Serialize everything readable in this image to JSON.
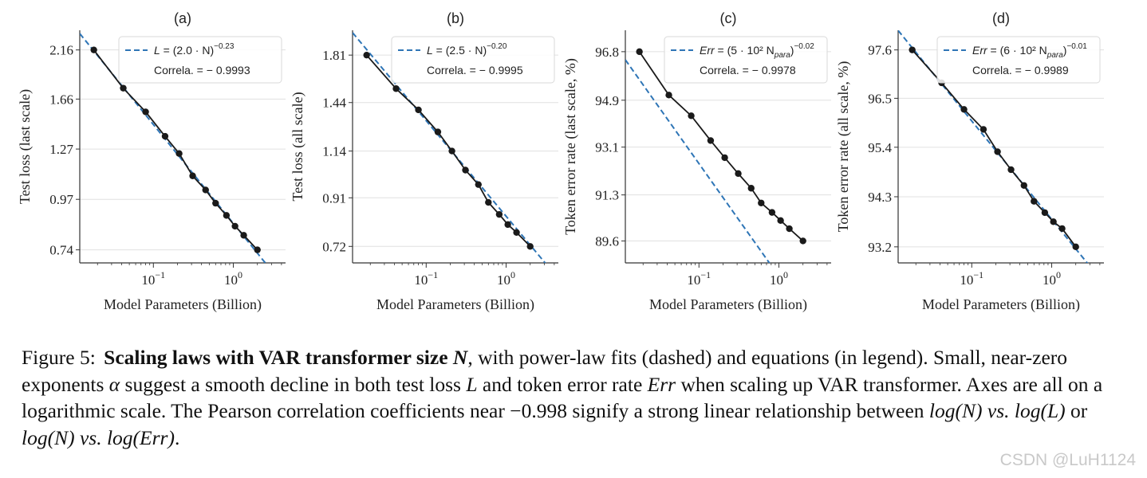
{
  "chart_data": [
    {
      "type": "line",
      "panel_label": "(a)",
      "xlabel": "Model Parameters (Billion)",
      "ylabel": "Test loss (last scale)",
      "x_scale": "log",
      "y_scale": "log",
      "xlim": [
        0.012,
        4.5
      ],
      "ylim": [
        0.69,
        2.4
      ],
      "x_ticks": [
        {
          "value": 0.1,
          "base": "10",
          "exp": "−1"
        },
        {
          "value": 1,
          "base": "10",
          "exp": "0"
        }
      ],
      "y_ticks": [
        0.74,
        0.97,
        1.27,
        1.66,
        2.16
      ],
      "y_tick_labels": [
        "0.74",
        "0.97",
        "1.27",
        "1.66",
        "2.16"
      ],
      "grid": "horizontal",
      "legend_position": "top-right",
      "legend": {
        "lhs": "L",
        "paren": "(2.0 · N)",
        "exp": "−0.23",
        "correlation_label": "Correla. = − 0.9993"
      },
      "fit": {
        "coef": 2.0,
        "exponent": -0.23
      },
      "series": [
        {
          "x": [
            0.018,
            0.042,
            0.08,
            0.14,
            0.21,
            0.31,
            0.45,
            0.6,
            0.82,
            1.05,
            1.35,
            2.0
          ],
          "y": [
            2.16,
            1.76,
            1.55,
            1.36,
            1.24,
            1.1,
            1.02,
            0.95,
            0.89,
            0.84,
            0.8,
            0.74
          ]
        }
      ]
    },
    {
      "type": "line",
      "panel_label": "(b)",
      "xlabel": "Model Parameters (Billion)",
      "ylabel": "Test loss (all scale)",
      "x_scale": "log",
      "y_scale": "log",
      "xlim": [
        0.012,
        4.5
      ],
      "ylim": [
        0.665,
        2.04
      ],
      "x_ticks": [
        {
          "value": 0.1,
          "base": "10",
          "exp": "−1"
        },
        {
          "value": 1,
          "base": "10",
          "exp": "0"
        }
      ],
      "y_ticks": [
        0.72,
        0.91,
        1.14,
        1.44,
        1.81
      ],
      "y_tick_labels": [
        "0.72",
        "0.91",
        "1.14",
        "1.44",
        "1.81"
      ],
      "grid": "horizontal",
      "legend_position": "top-right",
      "legend": {
        "lhs": "L",
        "paren": "(2.5 · N)",
        "exp": "−0.20",
        "correlation_label": "Correla. = − 0.9995"
      },
      "fit": {
        "coef": 2.5,
        "exponent": -0.2
      },
      "series": [
        {
          "x": [
            0.018,
            0.042,
            0.08,
            0.14,
            0.21,
            0.31,
            0.45,
            0.6,
            0.82,
            1.05,
            1.35,
            2.0
          ],
          "y": [
            1.81,
            1.54,
            1.39,
            1.25,
            1.14,
            1.04,
            0.97,
            0.89,
            0.84,
            0.8,
            0.77,
            0.72
          ]
        }
      ]
    },
    {
      "type": "line",
      "panel_label": "(c)",
      "xlabel": "Model Parameters (Billion)",
      "ylabel": "Token error rate (last scale, %)",
      "x_scale": "log",
      "y_scale": "log",
      "xlim": [
        0.012,
        4.5
      ],
      "ylim": [
        88.8,
        97.65
      ],
      "x_ticks": [
        {
          "value": 0.1,
          "base": "10",
          "exp": "−1"
        },
        {
          "value": 1,
          "base": "10",
          "exp": "0"
        }
      ],
      "y_ticks": [
        89.6,
        91.3,
        93.1,
        94.9,
        96.8
      ],
      "y_tick_labels": [
        "89.6",
        "91.3",
        "93.1",
        "94.9",
        "96.8"
      ],
      "grid": "horizontal",
      "legend_position": "top-right",
      "legend": {
        "lhs": "Err",
        "paren": "(5 · 10² N",
        "sub": "para",
        "exp": "−0.02",
        "correlation_label": "Correla. = − 0.9978"
      },
      "fit": {
        "coef": 500,
        "exponent": -0.02,
        "scale": 100
      },
      "series": [
        {
          "x": [
            0.018,
            0.042,
            0.08,
            0.14,
            0.21,
            0.31,
            0.45,
            0.6,
            0.82,
            1.05,
            1.35,
            2.0
          ],
          "y": [
            96.8,
            95.1,
            94.3,
            93.35,
            92.7,
            92.1,
            91.55,
            91.0,
            90.65,
            90.35,
            90.05,
            89.6
          ]
        }
      ]
    },
    {
      "type": "line",
      "panel_label": "(d)",
      "xlabel": "Model Parameters (Billion)",
      "ylabel": "Token error rate (all scale, %)",
      "x_scale": "log",
      "y_scale": "log",
      "xlim": [
        0.012,
        4.5
      ],
      "ylim": [
        92.85,
        98.05
      ],
      "x_ticks": [
        {
          "value": 0.1,
          "base": "10",
          "exp": "−1"
        },
        {
          "value": 1,
          "base": "10",
          "exp": "0"
        }
      ],
      "y_ticks": [
        93.2,
        94.3,
        95.4,
        96.5,
        97.6
      ],
      "y_tick_labels": [
        "93.2",
        "94.3",
        "95.4",
        "96.5",
        "97.6"
      ],
      "grid": "horizontal",
      "legend_position": "top-right",
      "legend": {
        "lhs": "Err",
        "paren": "(6 · 10² N",
        "sub": "para",
        "exp": "−0.01",
        "correlation_label": "Correla. = − 0.9989"
      },
      "fit": {
        "coef": 600,
        "exponent": -0.01,
        "scale": 100
      },
      "series": [
        {
          "x": [
            0.018,
            0.042,
            0.08,
            0.14,
            0.21,
            0.31,
            0.45,
            0.6,
            0.82,
            1.05,
            1.35,
            2.0
          ],
          "y": [
            97.6,
            96.85,
            96.25,
            95.8,
            95.3,
            94.9,
            94.55,
            94.2,
            93.95,
            93.75,
            93.6,
            93.2
          ]
        }
      ]
    }
  ],
  "caption": {
    "lead": "Figure 5:",
    "bold": "Scaling laws with VAR transformer size",
    "bold_var": "N",
    "s1": ", with power-law fits (dashed) and equations (in legend). Small, near-zero exponents",
    "alpha": "α",
    "s2": "suggest a smooth decline in both test loss",
    "L": "L",
    "s3": "and token error rate",
    "Err": "Err",
    "s4": "when scaling up VAR transformer. Axes are all on a logarithmic scale. The Pearson correlation coefficients near",
    "coef": "−0.998",
    "s5": "signify a strong linear relationship between",
    "m1": "log(N) vs. log(L)",
    "or": "or",
    "m2": "log(N) vs. log(Err)",
    "end": "."
  },
  "watermark": "CSDN @LuH1124",
  "colors": {
    "fit": "#2e75b6",
    "data": "#1a1a1a",
    "grid": "#e0e0e0",
    "legend_border": "#d9d9d9"
  }
}
